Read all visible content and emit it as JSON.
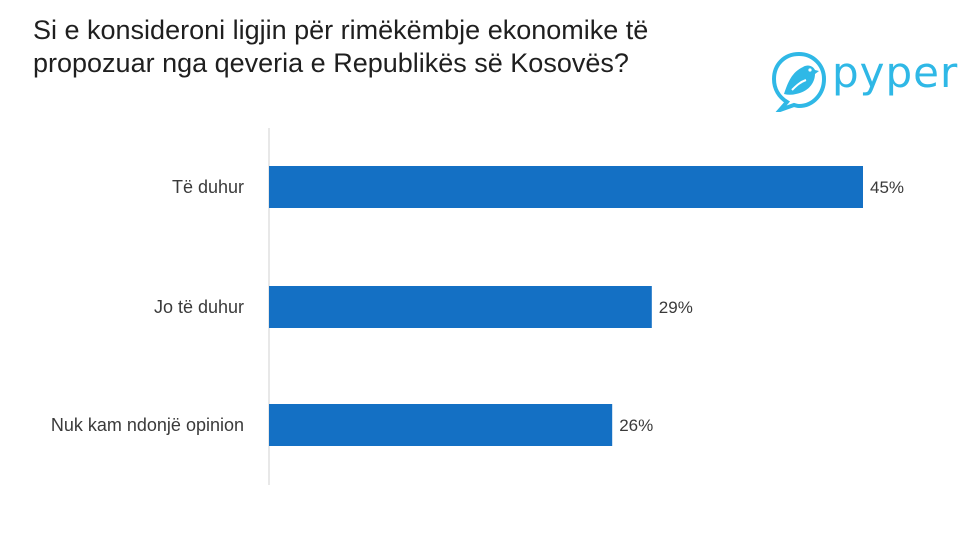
{
  "title_lines": [
    "Si e konsideroni ligjin për rimëkëmbje ekonomike të",
    "propozuar nga qeveria e Republikës së Kosovës?"
  ],
  "logo": {
    "text": "pyper",
    "color": "#2fb8e6"
  },
  "colors": {
    "bar": "#1470c4",
    "axis": "#d0d0d0",
    "text": "#3a3a3a"
  },
  "chart_data": {
    "type": "bar",
    "orientation": "horizontal",
    "categories": [
      "Të duhur",
      "Jo të duhur",
      "Nuk kam ndonjë opinion"
    ],
    "values": [
      45,
      29,
      26
    ],
    "value_labels": [
      "45%",
      "29%",
      "26%"
    ],
    "unit": "%",
    "xlim": [
      0,
      50
    ],
    "grid": false,
    "legend": "none"
  }
}
